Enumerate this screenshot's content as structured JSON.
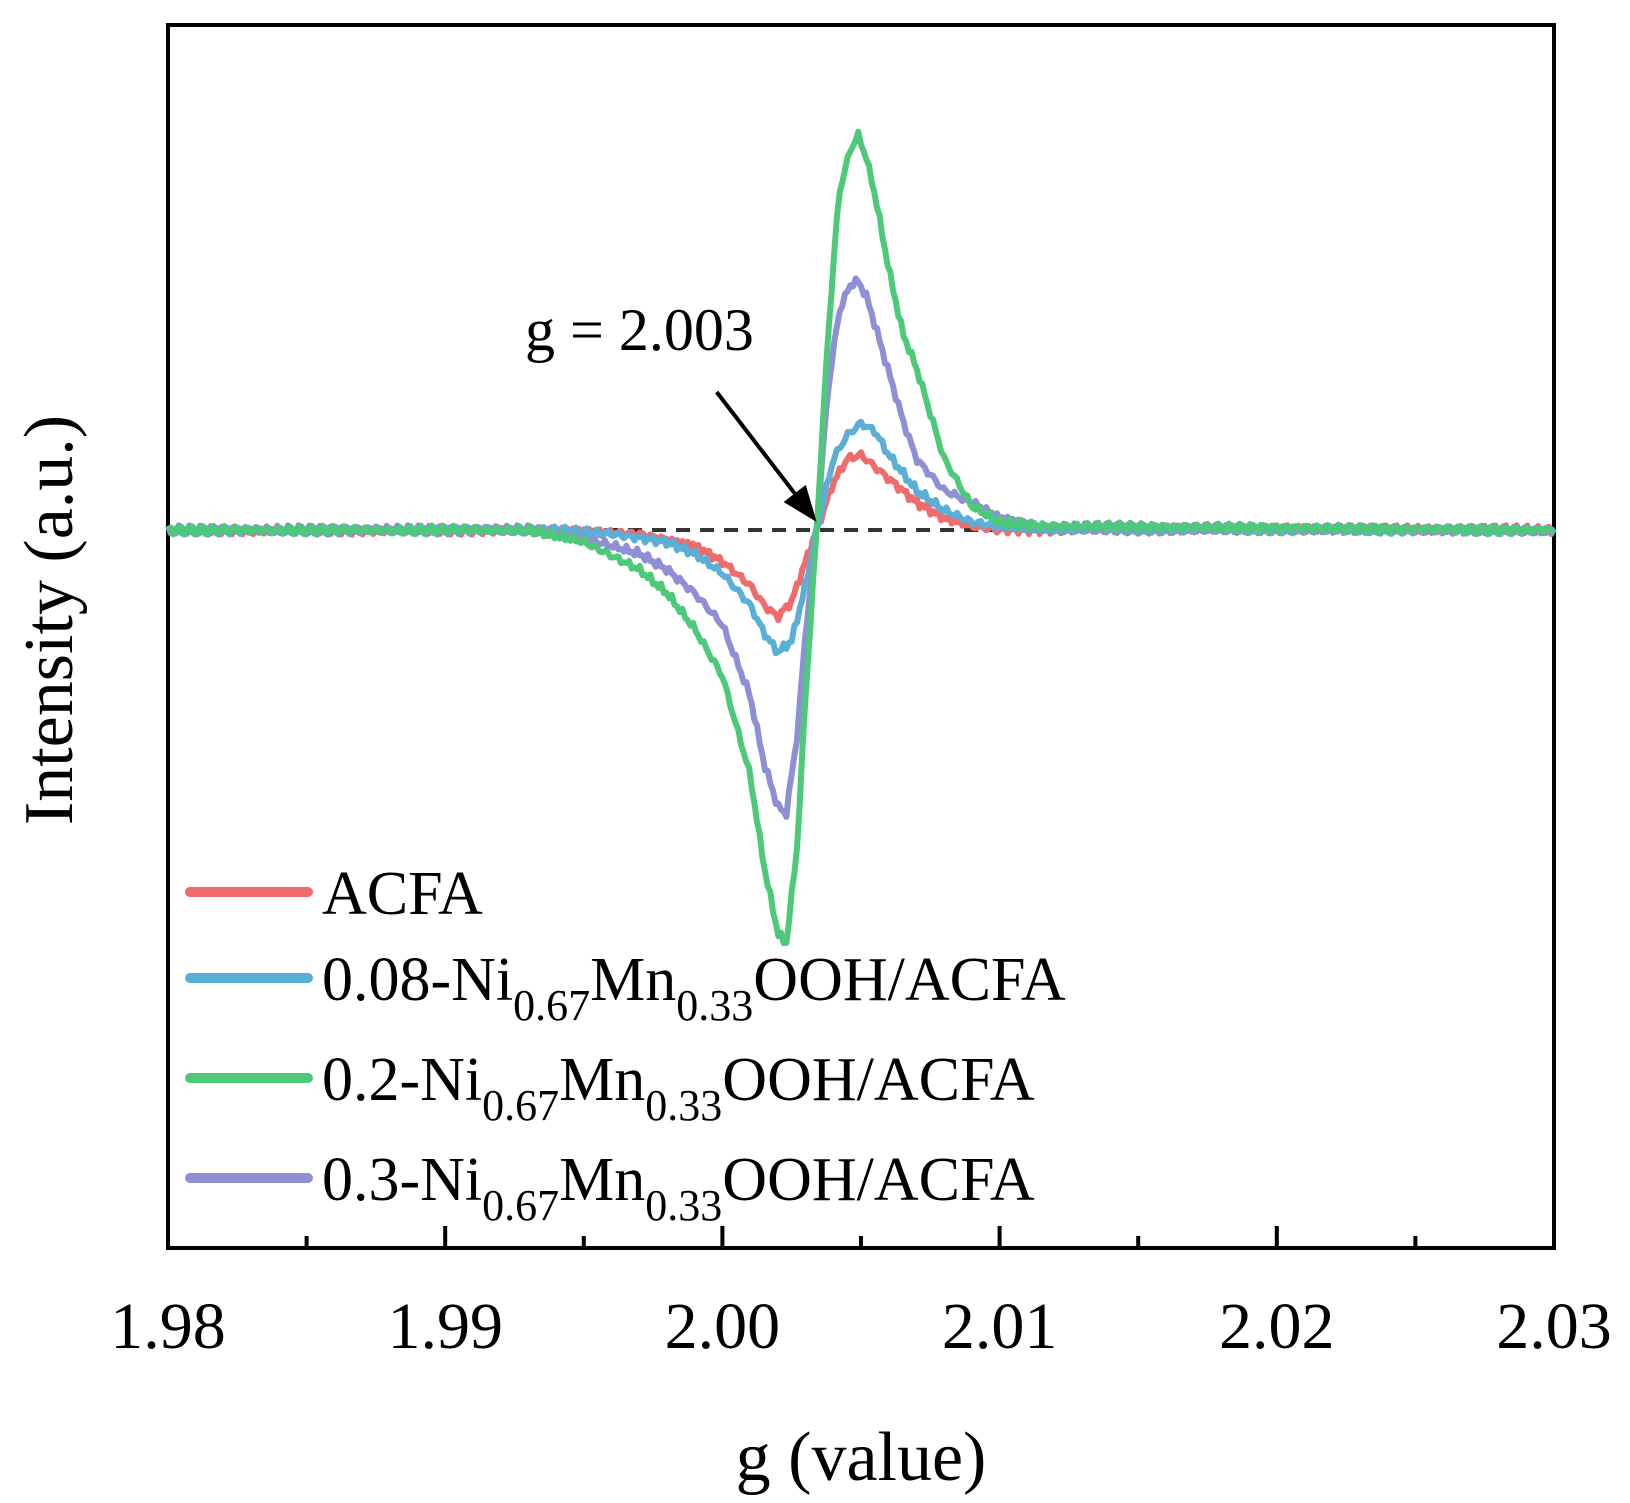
{
  "chart_data": {
    "type": "line",
    "title": "",
    "xlabel": "g (value)",
    "ylabel": "Intensity (a.u.)",
    "xlim": [
      1.98,
      2.03
    ],
    "ylim": [
      -1.1,
      1.0
    ],
    "x_ticks": [
      "1.98",
      "1.99",
      "2.00",
      "2.01",
      "2.02",
      "2.03"
    ],
    "y_ticks_shown": false,
    "grid": false,
    "legend_position": "bottom-left",
    "baseline": {
      "value": 0,
      "x_range": [
        1.994,
        2.0108
      ],
      "style": "dashed"
    },
    "annotation": {
      "text": "g = 2.003",
      "g": 2.0034,
      "arrow": true
    },
    "series": [
      {
        "name": "ACFA",
        "label_parts": [
          [
            "ACFA",
            ""
          ]
        ],
        "color": "#f06b6b",
        "x": [
          1.98,
          1.994,
          1.997,
          1.999,
          2.0,
          2.001,
          2.0015,
          2.002,
          2.0025,
          2.003,
          2.0034,
          2.004,
          2.0045,
          2.005,
          2.0055,
          2.006,
          2.007,
          2.008,
          2.009,
          2.01,
          2.012,
          2.03
        ],
        "values": [
          0,
          0,
          -0.01,
          -0.04,
          -0.08,
          -0.14,
          -0.19,
          -0.22,
          -0.18,
          -0.08,
          0.0,
          0.12,
          0.18,
          0.19,
          0.16,
          0.13,
          0.07,
          0.03,
          0.01,
          0.0,
          0,
          0
        ]
      },
      {
        "name": "0.08-Ni0.67Mn0.33OOH/ACFA",
        "label_parts": [
          [
            "0.08-Ni",
            ""
          ],
          [
            "0.67",
            "sub"
          ],
          [
            "Mn",
            ""
          ],
          [
            "0.33",
            "sub"
          ],
          [
            "OOH/ACFA",
            ""
          ]
        ],
        "color": "#5aafd6",
        "x": [
          1.98,
          1.994,
          1.996,
          1.998,
          1.999,
          2.0,
          2.001,
          2.0015,
          2.002,
          2.0025,
          2.003,
          2.0034,
          2.004,
          2.0045,
          2.005,
          2.0055,
          2.006,
          2.007,
          2.008,
          2.009,
          2.01,
          2.012,
          2.03
        ],
        "values": [
          0,
          0,
          -0.01,
          -0.03,
          -0.06,
          -0.11,
          -0.19,
          -0.26,
          -0.31,
          -0.28,
          -0.14,
          0.0,
          0.18,
          0.24,
          0.27,
          0.25,
          0.19,
          0.1,
          0.05,
          0.02,
          0.01,
          0,
          0
        ]
      },
      {
        "name": "0.2-Ni0.67Mn0.33OOH/ACFA",
        "label_parts": [
          [
            "0.2-Ni",
            ""
          ],
          [
            "0.67",
            "sub"
          ],
          [
            "Mn",
            ""
          ],
          [
            "0.33",
            "sub"
          ],
          [
            "OOH/ACFA",
            ""
          ]
        ],
        "color": "#4dc97a",
        "x": [
          1.98,
          1.993,
          1.995,
          1.997,
          1.998,
          1.999,
          2.0,
          2.001,
          2.0015,
          2.002,
          2.0023,
          2.0027,
          2.003,
          2.0034,
          2.0038,
          2.0042,
          2.0046,
          2.0049,
          2.0052,
          2.0055,
          2.006,
          2.0065,
          2.007,
          2.008,
          2.009,
          2.01,
          2.0115,
          2.03
        ],
        "values": [
          0,
          0,
          -0.03,
          -0.1,
          -0.16,
          -0.25,
          -0.37,
          -0.62,
          -0.85,
          -1.02,
          -1.05,
          -0.8,
          -0.42,
          0.0,
          0.48,
          0.85,
          0.96,
          1.0,
          0.94,
          0.85,
          0.66,
          0.5,
          0.41,
          0.18,
          0.06,
          0.02,
          0.01,
          0
        ]
      },
      {
        "name": "0.3-Ni0.67Mn0.33OOH/ACFA",
        "label_parts": [
          [
            "0.3-Ni",
            ""
          ],
          [
            "0.67",
            "sub"
          ],
          [
            "Mn",
            ""
          ],
          [
            "0.33",
            "sub"
          ],
          [
            "OOH/ACFA",
            ""
          ]
        ],
        "color": "#8f8fd6",
        "x": [
          1.98,
          1.993,
          1.995,
          1.997,
          1.998,
          1.999,
          2.0,
          2.001,
          2.0015,
          2.002,
          2.0023,
          2.0027,
          2.003,
          2.0034,
          2.0038,
          2.0042,
          2.0046,
          2.0049,
          2.0052,
          2.0055,
          2.006,
          2.0065,
          2.007,
          2.008,
          2.009,
          2.01,
          2.0115,
          2.03
        ],
        "values": [
          0,
          0,
          -0.02,
          -0.06,
          -0.1,
          -0.16,
          -0.24,
          -0.42,
          -0.59,
          -0.7,
          -0.72,
          -0.52,
          -0.26,
          0.0,
          0.35,
          0.55,
          0.62,
          0.63,
          0.59,
          0.52,
          0.4,
          0.28,
          0.18,
          0.1,
          0.07,
          0.03,
          0.01,
          0
        ]
      }
    ]
  }
}
